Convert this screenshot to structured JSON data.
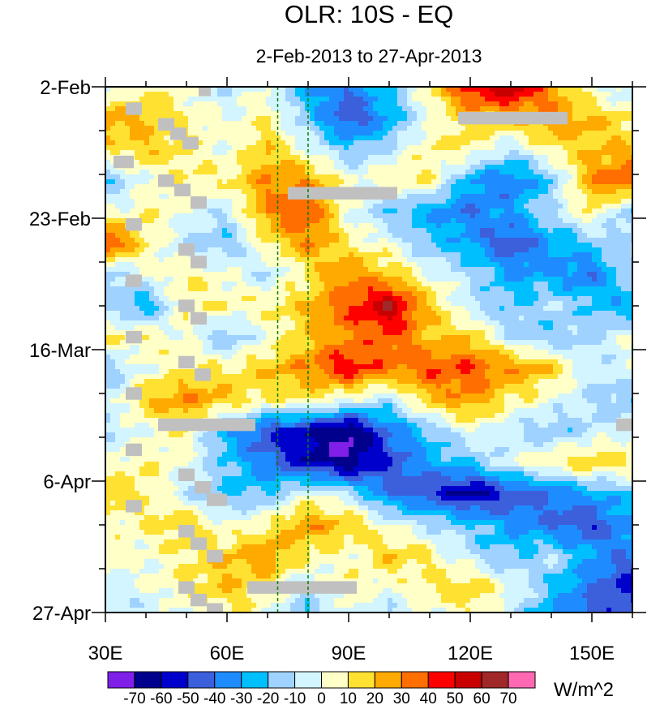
{
  "chart_data": {
    "type": "heatmap",
    "title": "OLR: 10S - EQ",
    "subtitle": "2-Feb-2013 to 27-Apr-2013",
    "xlabel": "",
    "ylabel": "",
    "units": "W/m^2",
    "xlim": [
      30,
      160
    ],
    "ylim_days": [
      0,
      84
    ],
    "x_ticks": [
      {
        "value": 30,
        "label": "30E"
      },
      {
        "value": 60,
        "label": "60E"
      },
      {
        "value": 90,
        "label": "90E"
      },
      {
        "value": 120,
        "label": "120E"
      },
      {
        "value": 150,
        "label": "150E"
      }
    ],
    "y_ticks": [
      {
        "day": 0,
        "label": "2-Feb"
      },
      {
        "day": 21,
        "label": "23-Feb"
      },
      {
        "day": 42,
        "label": "16-Mar"
      },
      {
        "day": 63,
        "label": "6-Apr"
      },
      {
        "day": 84,
        "label": "27-Apr"
      }
    ],
    "reference_lines_lon": [
      72.5,
      80
    ],
    "levels": [
      -70,
      -60,
      -50,
      -40,
      -30,
      -20,
      -10,
      0,
      10,
      20,
      30,
      40,
      50,
      60,
      70
    ],
    "level_labels": [
      "-70",
      "-60",
      "-50",
      "-40",
      "-30",
      "-20",
      "-10",
      "0",
      "10",
      "20",
      "30",
      "40",
      "50",
      "60",
      "70"
    ],
    "colors": [
      "#7f1fe8",
      "#00008c",
      "#0000cd",
      "#3c5fdc",
      "#1e8cff",
      "#00bfff",
      "#a0d2ff",
      "#d2f5ff",
      "#ffffc8",
      "#ffe132",
      "#ffaa00",
      "#ff6e00",
      "#ff0000",
      "#c80000",
      "#a02828",
      "#ff69b4"
    ],
    "missing_color": "#c0c0c0",
    "lons": [
      30,
      40,
      50,
      60,
      70,
      80,
      90,
      100,
      110,
      120,
      130,
      140,
      150,
      160
    ],
    "days": [
      0,
      5,
      10,
      15,
      20,
      25,
      30,
      35,
      40,
      45,
      50,
      55,
      60,
      65,
      70,
      75,
      80,
      84
    ],
    "values": [
      [
        -10,
        10,
        0,
        -10,
        0,
        -30,
        -40,
        -20,
        10,
        50,
        60,
        30,
        0,
        -10
      ],
      [
        30,
        20,
        10,
        0,
        10,
        -20,
        -50,
        -30,
        0,
        20,
        20,
        30,
        20,
        10
      ],
      [
        10,
        20,
        10,
        0,
        20,
        0,
        -20,
        -10,
        10,
        10,
        -10,
        10,
        20,
        20
      ],
      [
        -20,
        0,
        10,
        10,
        30,
        30,
        0,
        10,
        10,
        -30,
        -40,
        -20,
        30,
        40
      ],
      [
        0,
        10,
        0,
        -10,
        30,
        40,
        0,
        -20,
        -30,
        -40,
        -30,
        -10,
        10,
        -20
      ],
      [
        50,
        10,
        -10,
        -20,
        10,
        30,
        10,
        0,
        -20,
        -30,
        -50,
        -30,
        -20,
        -10
      ],
      [
        -20,
        0,
        10,
        0,
        -10,
        10,
        30,
        20,
        0,
        -10,
        -30,
        -30,
        -40,
        -10
      ],
      [
        -10,
        -30,
        10,
        10,
        10,
        20,
        40,
        60,
        20,
        -10,
        -20,
        -10,
        -20,
        -30
      ],
      [
        10,
        10,
        0,
        -20,
        0,
        20,
        30,
        40,
        20,
        20,
        -10,
        -20,
        -10,
        0
      ],
      [
        -20,
        0,
        10,
        10,
        20,
        30,
        50,
        30,
        40,
        40,
        30,
        20,
        -10,
        0
      ],
      [
        -10,
        20,
        30,
        20,
        10,
        10,
        0,
        -10,
        20,
        30,
        10,
        0,
        -10,
        -20
      ],
      [
        -10,
        0,
        10,
        -30,
        -50,
        -60,
        -75,
        -40,
        -20,
        0,
        -10,
        -20,
        -10,
        0
      ],
      [
        0,
        10,
        0,
        -20,
        -40,
        -60,
        -70,
        -50,
        -30,
        -20,
        0,
        10,
        20,
        10
      ],
      [
        20,
        10,
        -10,
        -20,
        -20,
        0,
        -10,
        -40,
        -50,
        -65,
        -50,
        -40,
        -30,
        -20
      ],
      [
        0,
        10,
        20,
        0,
        10,
        30,
        20,
        0,
        -10,
        -20,
        -30,
        -40,
        -50,
        -30
      ],
      [
        10,
        0,
        10,
        20,
        30,
        10,
        0,
        20,
        10,
        -10,
        -20,
        -10,
        -30,
        -40
      ],
      [
        -10,
        0,
        10,
        20,
        10,
        -10,
        10,
        0,
        10,
        20,
        0,
        -20,
        -40,
        -60
      ],
      [
        0,
        -10,
        0,
        10,
        0,
        -20,
        0,
        -10,
        0,
        10,
        -10,
        -30,
        -50,
        -40
      ]
    ],
    "missing_regions": [
      {
        "lon": [
          117,
          144
        ],
        "day": [
          4,
          6
        ]
      },
      {
        "lon": [
          75,
          102
        ],
        "day": [
          16,
          18
        ]
      },
      {
        "lon": [
          43,
          67
        ],
        "day": [
          53,
          55
        ]
      },
      {
        "lon": [
          65,
          92
        ],
        "day": [
          79,
          81
        ]
      },
      {
        "lon": [
          156,
          160
        ],
        "day": [
          53,
          55
        ]
      },
      {
        "lon": [
          53,
          56
        ],
        "day": [
          0,
          1.5
        ]
      },
      {
        "lon": [
          35,
          39
        ],
        "day": [
          2.5,
          4.5
        ]
      },
      {
        "lon": [
          43,
          47
        ],
        "day": [
          5,
          7
        ]
      },
      {
        "lon": [
          46,
          50
        ],
        "day": [
          6.5,
          8.5
        ]
      },
      {
        "lon": [
          49,
          53
        ],
        "day": [
          8,
          10
        ]
      },
      {
        "lon": [
          32,
          37
        ],
        "day": [
          11,
          13
        ]
      },
      {
        "lon": [
          43,
          47
        ],
        "day": [
          14,
          16
        ]
      },
      {
        "lon": [
          47,
          51
        ],
        "day": [
          15.5,
          17.5
        ]
      },
      {
        "lon": [
          51,
          55
        ],
        "day": [
          17.5,
          19.5
        ]
      },
      {
        "lon": [
          35,
          39
        ],
        "day": [
          21,
          23
        ]
      },
      {
        "lon": [
          48,
          52
        ],
        "day": [
          25,
          27
        ]
      },
      {
        "lon": [
          51,
          55
        ],
        "day": [
          27,
          29
        ]
      },
      {
        "lon": [
          35,
          39
        ],
        "day": [
          30,
          32
        ]
      },
      {
        "lon": [
          48,
          52
        ],
        "day": [
          34,
          36
        ]
      },
      {
        "lon": [
          51,
          55
        ],
        "day": [
          36,
          38
        ]
      },
      {
        "lon": [
          35,
          39
        ],
        "day": [
          39,
          41
        ]
      },
      {
        "lon": [
          48,
          52
        ],
        "day": [
          43,
          45
        ]
      },
      {
        "lon": [
          52,
          56
        ],
        "day": [
          45,
          47
        ]
      },
      {
        "lon": [
          35,
          39
        ],
        "day": [
          48,
          50
        ]
      },
      {
        "lon": [
          35,
          39
        ],
        "day": [
          57,
          59
        ]
      },
      {
        "lon": [
          48,
          52
        ],
        "day": [
          61,
          63
        ]
      },
      {
        "lon": [
          52,
          56
        ],
        "day": [
          63,
          65
        ]
      },
      {
        "lon": [
          55,
          60
        ],
        "day": [
          65,
          67
        ]
      },
      {
        "lon": [
          35,
          39
        ],
        "day": [
          66,
          68
        ]
      },
      {
        "lon": [
          48,
          52
        ],
        "day": [
          70,
          72
        ]
      },
      {
        "lon": [
          51,
          55
        ],
        "day": [
          72,
          74
        ]
      },
      {
        "lon": [
          55,
          59
        ],
        "day": [
          74,
          76
        ]
      },
      {
        "lon": [
          48,
          52
        ],
        "day": [
          79,
          81
        ]
      },
      {
        "lon": [
          51,
          55
        ],
        "day": [
          81,
          83
        ]
      },
      {
        "lon": [
          55,
          59
        ],
        "day": [
          82.5,
          84
        ]
      }
    ]
  }
}
